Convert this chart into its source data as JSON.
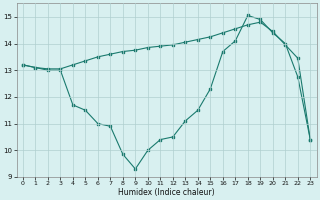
{
  "xlabel": "Humidex (Indice chaleur)",
  "line1_x": [
    0,
    1,
    2,
    3,
    4,
    5,
    6,
    7,
    8,
    9,
    10,
    11,
    12,
    13,
    14,
    15,
    16,
    17,
    18,
    19,
    20,
    21,
    22,
    23
  ],
  "line1_y": [
    13.2,
    13.1,
    13.0,
    13.0,
    11.7,
    11.5,
    11.0,
    10.9,
    9.85,
    9.3,
    10.0,
    10.4,
    10.5,
    11.1,
    11.5,
    12.3,
    13.7,
    14.1,
    15.05,
    14.9,
    14.4,
    14.0,
    12.75,
    10.4
  ],
  "line2_x": [
    0,
    1,
    2,
    3,
    4,
    5,
    6,
    7,
    8,
    9,
    10,
    11,
    12,
    13,
    14,
    15,
    16,
    17,
    18,
    19,
    20,
    21,
    22,
    23
  ],
  "line2_y": [
    13.2,
    13.1,
    13.05,
    13.05,
    13.2,
    13.35,
    13.5,
    13.6,
    13.7,
    13.75,
    13.85,
    13.9,
    13.95,
    14.05,
    14.15,
    14.25,
    14.4,
    14.55,
    14.7,
    14.8,
    14.45,
    13.95,
    13.45,
    10.4
  ],
  "line_color": "#1a7a6e",
  "bg_color": "#d8f0f0",
  "grid_color": "#b0d0d0",
  "ylim": [
    9,
    15.5
  ],
  "xlim": [
    -0.5,
    23.5
  ],
  "yticks": [
    9,
    10,
    11,
    12,
    13,
    14,
    15
  ],
  "xticks": [
    0,
    1,
    2,
    3,
    4,
    5,
    6,
    7,
    8,
    9,
    10,
    11,
    12,
    13,
    14,
    15,
    16,
    17,
    18,
    19,
    20,
    21,
    22,
    23
  ]
}
